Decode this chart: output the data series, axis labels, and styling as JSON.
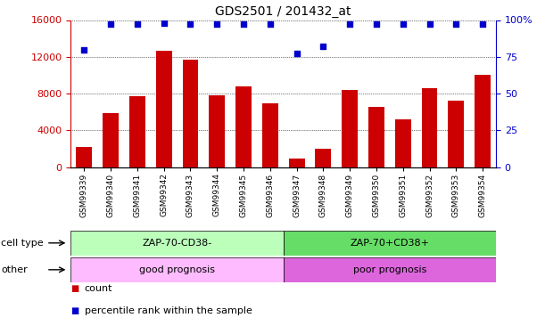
{
  "title": "GDS2501 / 201432_at",
  "samples": [
    "GSM99339",
    "GSM99340",
    "GSM99341",
    "GSM99342",
    "GSM99343",
    "GSM99344",
    "GSM99345",
    "GSM99346",
    "GSM99347",
    "GSM99348",
    "GSM99349",
    "GSM99350",
    "GSM99351",
    "GSM99352",
    "GSM99353",
    "GSM99354"
  ],
  "counts": [
    2200,
    5900,
    7700,
    12700,
    11700,
    7800,
    8800,
    6900,
    900,
    2000,
    8400,
    6500,
    5200,
    8600,
    7200,
    10000
  ],
  "percentile_ranks": [
    80,
    97,
    97,
    98,
    97,
    97,
    97,
    97,
    77,
    82,
    97,
    97,
    97,
    97,
    97,
    97
  ],
  "bar_color": "#cc0000",
  "dot_color": "#0000cc",
  "ylim_left": [
    0,
    16000
  ],
  "ylim_right": [
    0,
    100
  ],
  "yticks_left": [
    0,
    4000,
    8000,
    12000,
    16000
  ],
  "yticks_right": [
    0,
    25,
    50,
    75,
    100
  ],
  "ytick_labels_right": [
    "0",
    "25",
    "50",
    "75",
    "100%"
  ],
  "cell_type_labels": [
    "ZAP-70-CD38-",
    "ZAP-70+CD38+"
  ],
  "cell_type_colors": [
    "#bbffbb",
    "#66dd66"
  ],
  "other_labels": [
    "good prognosis",
    "poor prognosis"
  ],
  "other_colors": [
    "#ffbbff",
    "#dd66dd"
  ],
  "group_split": 8,
  "legend_count_label": "count",
  "legend_pct_label": "percentile rank within the sample",
  "row_label_cell_type": "cell type",
  "row_label_other": "other",
  "background_color": "#ffffff",
  "tick_label_color_left": "#cc0000",
  "tick_label_color_right": "#0000cc"
}
